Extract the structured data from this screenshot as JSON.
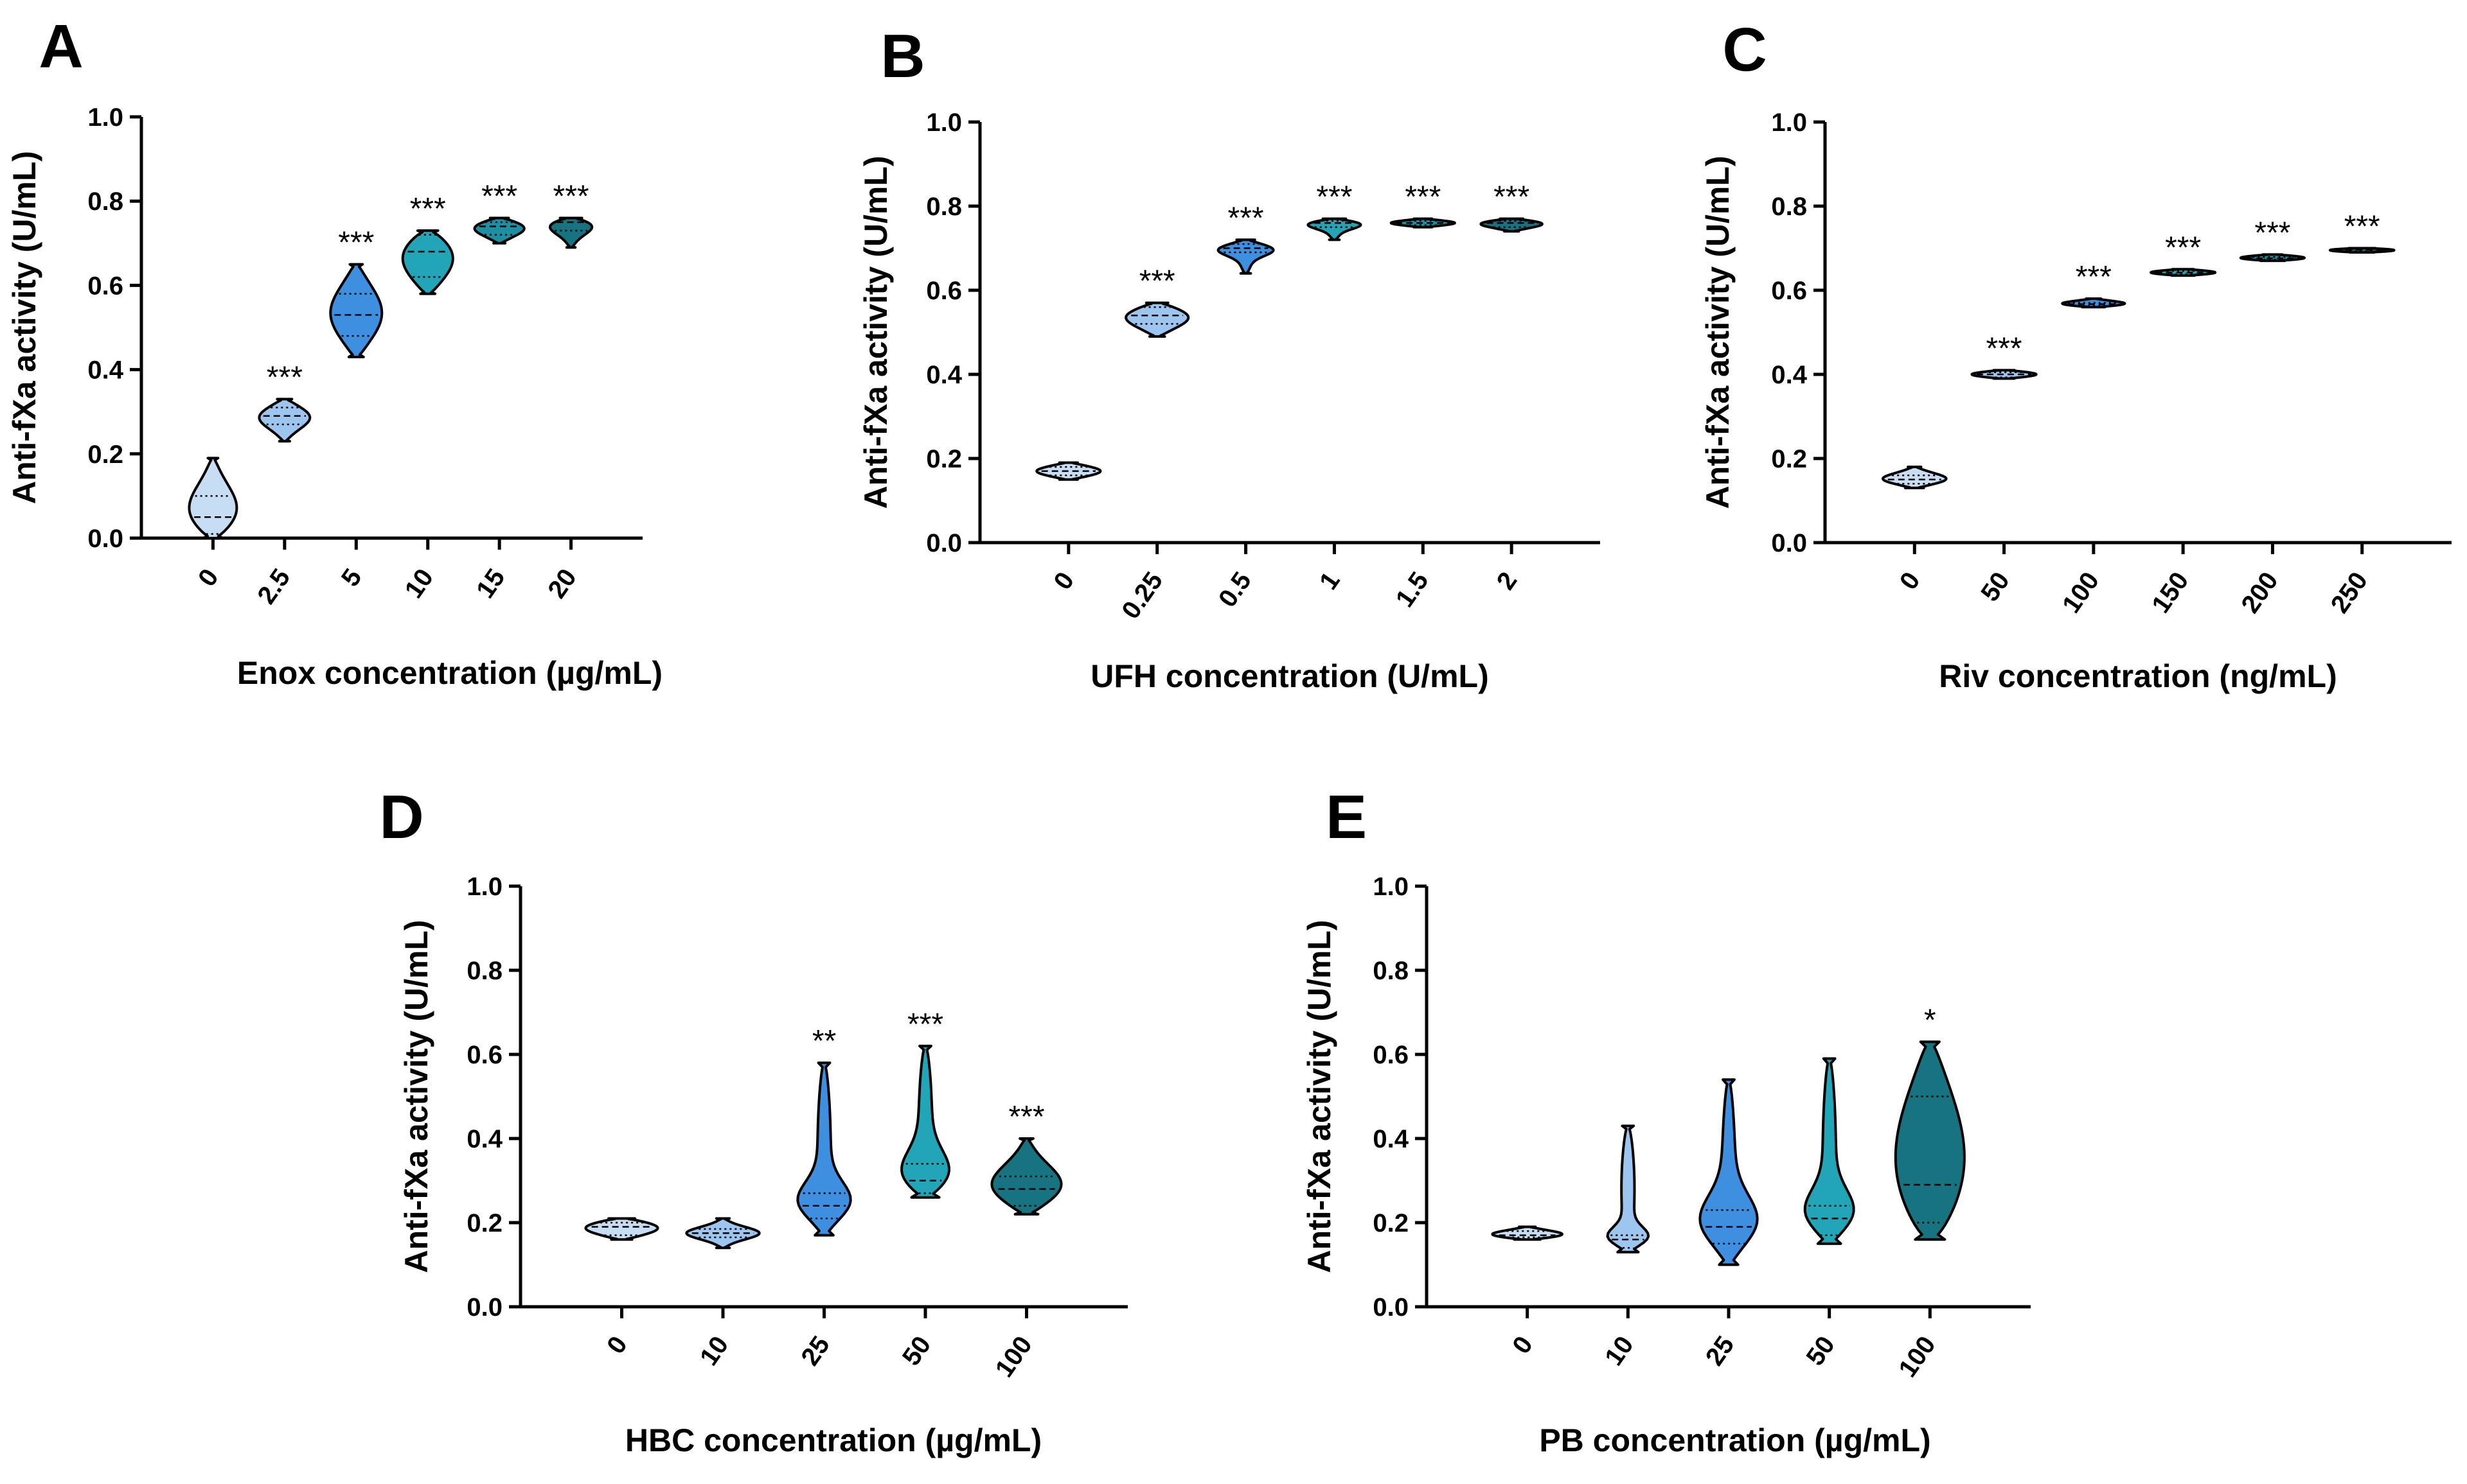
{
  "chart_data": [
    {
      "panel": "A",
      "type": "violin",
      "ylabel": "Anti-fXa activity (U/mL)",
      "xlabel": "Enox concentration (µg/mL)",
      "ylim": [
        0,
        1.0
      ],
      "yticks": [
        "0.0",
        "0.2",
        "0.4",
        "0.6",
        "0.8",
        "1.0"
      ],
      "categories": [
        "0",
        "2.5",
        "5",
        "10",
        "15",
        "20"
      ],
      "colors": [
        "#c6ddf3",
        "#9cc6ef",
        "#3f8fe0",
        "#23a5b8",
        "#1d8fa3",
        "#16737f"
      ],
      "min": [
        0.0,
        0.23,
        0.43,
        0.58,
        0.7,
        0.69
      ],
      "q1": [
        0.01,
        0.27,
        0.48,
        0.62,
        0.72,
        0.73
      ],
      "median": [
        0.05,
        0.29,
        0.53,
        0.68,
        0.74,
        0.75
      ],
      "q3": [
        0.1,
        0.31,
        0.58,
        0.72,
        0.75,
        0.76
      ],
      "max": [
        0.19,
        0.33,
        0.65,
        0.73,
        0.76,
        0.76
      ],
      "significance": [
        "",
        "***",
        "***",
        "***",
        "***",
        "***"
      ]
    },
    {
      "panel": "B",
      "type": "violin",
      "ylabel": "Anti-fXa activity (U/mL)",
      "xlabel": "UFH concentration (U/mL)",
      "ylim": [
        0,
        1.0
      ],
      "yticks": [
        "0.0",
        "0.2",
        "0.4",
        "0.6",
        "0.8",
        "1.0"
      ],
      "categories": [
        "0",
        "0.25",
        "0.5",
        "1",
        "1.5",
        "2"
      ],
      "colors": [
        "#c6ddf3",
        "#9cc6ef",
        "#3f8fe0",
        "#23a5b8",
        "#1d8fa3",
        "#16737f"
      ],
      "min": [
        0.15,
        0.49,
        0.64,
        0.72,
        0.75,
        0.74
      ],
      "q1": [
        0.16,
        0.52,
        0.69,
        0.75,
        0.755,
        0.75
      ],
      "median": [
        0.17,
        0.54,
        0.7,
        0.76,
        0.76,
        0.76
      ],
      "q3": [
        0.18,
        0.56,
        0.71,
        0.765,
        0.765,
        0.765
      ],
      "max": [
        0.19,
        0.57,
        0.72,
        0.77,
        0.77,
        0.77
      ],
      "significance": [
        "",
        "***",
        "***",
        "***",
        "***",
        "***"
      ]
    },
    {
      "panel": "C",
      "type": "violin",
      "ylabel": "Anti-fXa activity (U/mL)",
      "xlabel": "Riv concentration (ng/mL)",
      "ylim": [
        0,
        1.0
      ],
      "yticks": [
        "0.0",
        "0.2",
        "0.4",
        "0.6",
        "0.8",
        "1.0"
      ],
      "categories": [
        "0",
        "50",
        "100",
        "150",
        "200",
        "250"
      ],
      "colors": [
        "#c6ddf3",
        "#9cc6ef",
        "#3f8fe0",
        "#23a5b8",
        "#1d8fa3",
        "#16737f"
      ],
      "min": [
        0.13,
        0.39,
        0.56,
        0.635,
        0.67,
        0.69
      ],
      "q1": [
        0.14,
        0.393,
        0.563,
        0.638,
        0.673,
        0.693
      ],
      "median": [
        0.15,
        0.4,
        0.567,
        0.642,
        0.676,
        0.696
      ],
      "q3": [
        0.16,
        0.405,
        0.57,
        0.646,
        0.679,
        0.699
      ],
      "max": [
        0.18,
        0.41,
        0.58,
        0.65,
        0.685,
        0.7
      ],
      "significance": [
        "",
        "***",
        "***",
        "***",
        "***",
        "***"
      ]
    },
    {
      "panel": "D",
      "type": "violin",
      "ylabel": "Anti-fXa activity (U/mL)",
      "xlabel": "HBC concentration (µg/mL)",
      "ylim": [
        0,
        1.0
      ],
      "yticks": [
        "0.0",
        "0.2",
        "0.4",
        "0.6",
        "0.8",
        "1.0"
      ],
      "categories": [
        "0",
        "10",
        "25",
        "50",
        "100"
      ],
      "colors": [
        "#c6ddf3",
        "#9cc6ef",
        "#3f8fe0",
        "#23a5b8",
        "#16737f"
      ],
      "min": [
        0.16,
        0.14,
        0.17,
        0.26,
        0.22
      ],
      "q1": [
        0.17,
        0.165,
        0.21,
        0.27,
        0.24
      ],
      "median": [
        0.19,
        0.175,
        0.24,
        0.3,
        0.28
      ],
      "q3": [
        0.2,
        0.185,
        0.27,
        0.34,
        0.31
      ],
      "max": [
        0.21,
        0.21,
        0.58,
        0.62,
        0.4
      ],
      "significance": [
        "",
        "",
        "**",
        "***",
        "***"
      ]
    },
    {
      "panel": "E",
      "type": "violin",
      "ylabel": "Anti-fXa activity (U/mL)",
      "xlabel": "PB concentration (µg/mL)",
      "ylim": [
        0,
        1.0
      ],
      "yticks": [
        "0.0",
        "0.2",
        "0.4",
        "0.6",
        "0.8",
        "1.0"
      ],
      "categories": [
        "0",
        "10",
        "25",
        "50",
        "100"
      ],
      "colors": [
        "#c6ddf3",
        "#9cc6ef",
        "#3f8fe0",
        "#23a5b8",
        "#16737f"
      ],
      "min": [
        0.16,
        0.13,
        0.1,
        0.15,
        0.16
      ],
      "q1": [
        0.165,
        0.14,
        0.15,
        0.17,
        0.2
      ],
      "median": [
        0.17,
        0.16,
        0.19,
        0.21,
        0.29
      ],
      "q3": [
        0.18,
        0.17,
        0.23,
        0.24,
        0.5
      ],
      "max": [
        0.19,
        0.43,
        0.54,
        0.59,
        0.63
      ],
      "significance": [
        "",
        "",
        "",
        "",
        "*"
      ]
    }
  ]
}
